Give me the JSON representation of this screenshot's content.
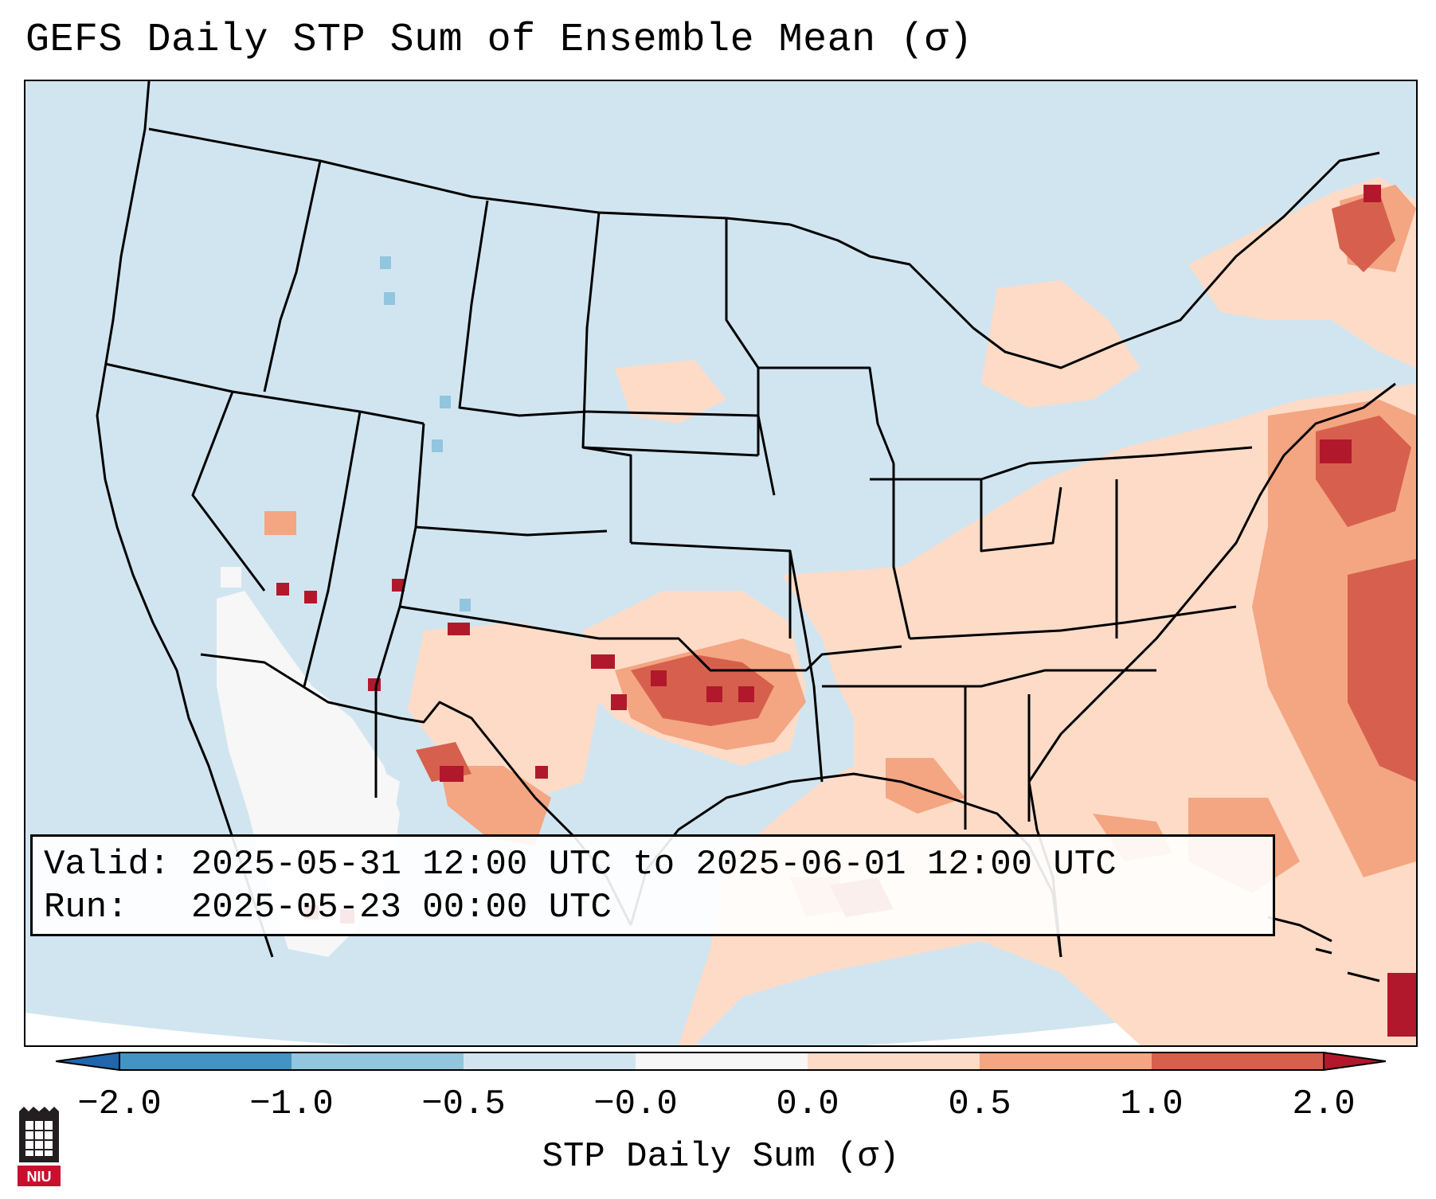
{
  "title": "GEFS Daily STP Sum of Ensemble Mean (σ)",
  "info": {
    "valid_label": "Valid:",
    "valid_value": "2025-05-31 12:00 UTC to 2025-06-01 12:00 UTC",
    "run_label": "Run:",
    "run_value": "2025-05-23 00:00 UTC"
  },
  "colorbar": {
    "label": "STP Daily Sum (σ)",
    "ticks": [
      "−2.0",
      "−1.0",
      "−0.5",
      "−0.0",
      "0.0",
      "0.5",
      "1.0",
      "2.0"
    ],
    "colors": [
      "#2166ac",
      "#4393c3",
      "#92c5de",
      "#d1e5f0",
      "#f7f7f7",
      "#fddbc7",
      "#f4a582",
      "#d6604d",
      "#b2182b"
    ]
  },
  "logo": {
    "text": "NIU",
    "colors": {
      "shield": "#231f20",
      "banner": "#c8102e"
    }
  },
  "map": {
    "background_color": "#d1e5f0",
    "outline_color": "#000000"
  }
}
